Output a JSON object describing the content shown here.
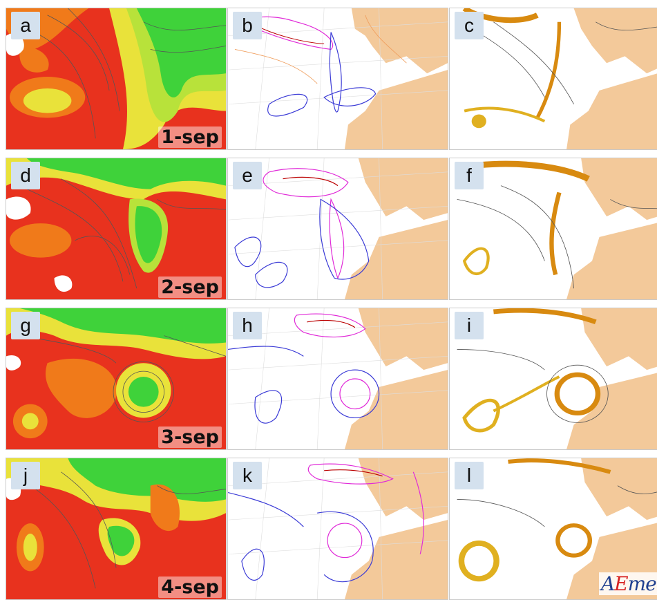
{
  "panels": [
    {
      "letter": "a",
      "date": "1-sep",
      "style": "colored"
    },
    {
      "letter": "b",
      "date": "",
      "style": "contours"
    },
    {
      "letter": "c",
      "date": "",
      "style": "streaks"
    },
    {
      "letter": "d",
      "date": "2-sep",
      "style": "colored"
    },
    {
      "letter": "e",
      "date": "",
      "style": "contours"
    },
    {
      "letter": "f",
      "date": "",
      "style": "streaks"
    },
    {
      "letter": "g",
      "date": "3-sep",
      "style": "colored"
    },
    {
      "letter": "h",
      "date": "",
      "style": "contours"
    },
    {
      "letter": "i",
      "date": "",
      "style": "streaks"
    },
    {
      "letter": "j",
      "date": "4-sep",
      "style": "colored"
    },
    {
      "letter": "k",
      "date": "",
      "style": "contours"
    },
    {
      "letter": "l",
      "date": "",
      "style": "streaks"
    }
  ],
  "logo": {
    "text_pre": "A",
    "text_accent": "E",
    "text_post": "met"
  },
  "colors": {
    "warm_red": "#e8321e",
    "orange": "#f07a1a",
    "yellow": "#e9e23a",
    "green": "#3fd23a",
    "land": "#f3c99a",
    "contour_blue": "#3a3ad6",
    "contour_magenta": "#e02ad8",
    "contour_orange": "#f0a060",
    "streak": "#d88a10"
  }
}
